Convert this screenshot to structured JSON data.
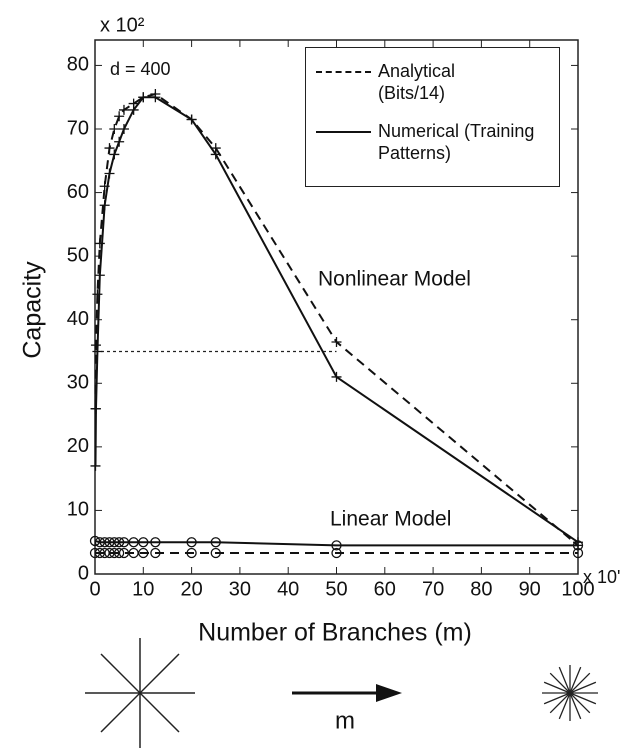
{
  "chart_data": {
    "type": "line",
    "y_label": "Capacity",
    "x_label": "Number of Branches (m)",
    "y_multiplier": "x 10²",
    "x_multiplier": "x 10'",
    "annotations": [
      "d = 400",
      "Nonlinear Model",
      "Linear Model"
    ],
    "xlim": [
      0,
      100
    ],
    "ylim": [
      0,
      84
    ],
    "xticks": [
      0,
      10,
      20,
      30,
      40,
      50,
      60,
      70,
      80,
      90,
      100
    ],
    "yticks": [
      0,
      10,
      20,
      30,
      40,
      50,
      60,
      70,
      80
    ],
    "grid": false,
    "series": [
      {
        "name": "Analytical (Bits/14)",
        "color": "#111111",
        "dash": true,
        "marker": "plus",
        "x": [
          0.1,
          0.2,
          0.5,
          1,
          2,
          3,
          4,
          5,
          6,
          8,
          10,
          12.5,
          20,
          25,
          50,
          100
        ],
        "values": [
          26,
          36,
          44,
          52,
          61,
          67,
          70,
          72,
          73,
          74,
          75,
          75.5,
          71.5,
          67,
          36.5,
          4.5
        ]
      },
      {
        "name": "Numerical (Training Patterns)",
        "color": "#111111",
        "dash": false,
        "marker": "plus",
        "x": [
          0.1,
          0.2,
          0.5,
          1,
          2,
          3,
          4,
          5,
          6,
          8,
          10,
          12.5,
          20,
          25,
          50,
          100
        ],
        "values": [
          17,
          26,
          35,
          47,
          58,
          63,
          66,
          68,
          70,
          73,
          75,
          75,
          71.5,
          66,
          31,
          5
        ]
      },
      {
        "color": "#111111",
        "dash": true,
        "marker": "circle",
        "x": [
          0,
          1,
          2,
          3,
          4,
          5,
          6,
          8,
          10,
          12.5,
          20,
          25,
          50,
          100
        ],
        "values": [
          3.3,
          3.3,
          3.3,
          3.3,
          3.3,
          3.3,
          3.3,
          3.3,
          3.3,
          3.3,
          3.3,
          3.3,
          3.3,
          3.3
        ]
      },
      {
        "color": "#111111",
        "dash": false,
        "marker": "circle",
        "x": [
          0,
          1,
          2,
          3,
          4,
          5,
          6,
          8,
          10,
          12.5,
          20,
          25,
          50,
          100
        ],
        "values": [
          5.2,
          5,
          5,
          5,
          5,
          5,
          5,
          5,
          5,
          5,
          5,
          5,
          4.5,
          4.5
        ]
      }
    ],
    "reference_line": {
      "y": 35,
      "x_end": 50
    }
  },
  "diagram_label": "m"
}
